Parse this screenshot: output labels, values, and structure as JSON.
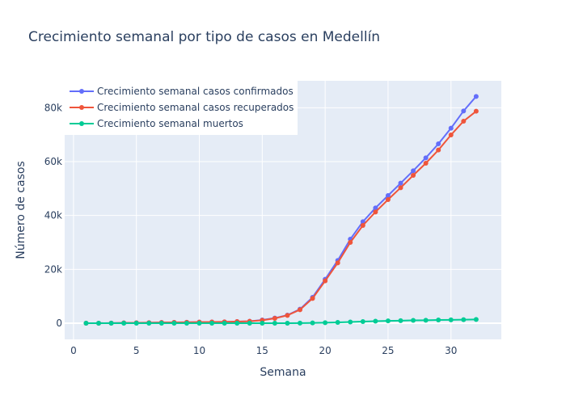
{
  "chart_data": {
    "type": "line",
    "title": "Crecimiento semanal por tipo de casos en Medellín",
    "xlabel": "Semana",
    "ylabel": "Número de casos",
    "xlim": [
      -0.7,
      34
    ],
    "ylim": [
      -6000,
      90000
    ],
    "x_ticks": [
      0,
      5,
      10,
      15,
      20,
      25,
      30
    ],
    "x_tick_labels": [
      "0",
      "5",
      "10",
      "15",
      "20",
      "25",
      "30"
    ],
    "y_ticks": [
      0,
      20000,
      40000,
      60000,
      80000
    ],
    "y_tick_labels": [
      "0",
      "20k",
      "40k",
      "60k",
      "80k"
    ],
    "grid": true,
    "legend_position": "top-left",
    "x": [
      1,
      2,
      3,
      4,
      5,
      6,
      7,
      8,
      9,
      10,
      11,
      12,
      13,
      14,
      15,
      16,
      17,
      18,
      19,
      20,
      21,
      22,
      23,
      24,
      25,
      26,
      27,
      28,
      29,
      30,
      31,
      32
    ],
    "series": [
      {
        "name": "Crecimiento semanal casos confirmados",
        "color": "#636efa",
        "values": [
          0,
          0,
          50,
          100,
          150,
          200,
          250,
          300,
          350,
          400,
          450,
          500,
          600,
          700,
          1200,
          1900,
          3000,
          5200,
          9600,
          16300,
          23300,
          31200,
          37700,
          42800,
          47400,
          52000,
          56600,
          61400,
          66600,
          72400,
          78800,
          84200
        ]
      },
      {
        "name": "Crecimiento semanal casos recuperados",
        "color": "#ef553b",
        "values": [
          0,
          0,
          50,
          100,
          150,
          200,
          250,
          300,
          350,
          400,
          450,
          500,
          600,
          700,
          1100,
          1800,
          2900,
          5000,
          9200,
          15700,
          22400,
          30000,
          36300,
          41300,
          45900,
          50300,
          54900,
          59400,
          64300,
          69900,
          75000,
          78700
        ]
      },
      {
        "name": "Crecimiento semanal muertos",
        "color": "#00cc96",
        "values": [
          0,
          0,
          0,
          0,
          0,
          0,
          0,
          0,
          0,
          0,
          0,
          0,
          0,
          0,
          0,
          0,
          0,
          50,
          100,
          200,
          300,
          450,
          600,
          750,
          850,
          950,
          1050,
          1100,
          1200,
          1250,
          1300,
          1400
        ]
      }
    ]
  }
}
